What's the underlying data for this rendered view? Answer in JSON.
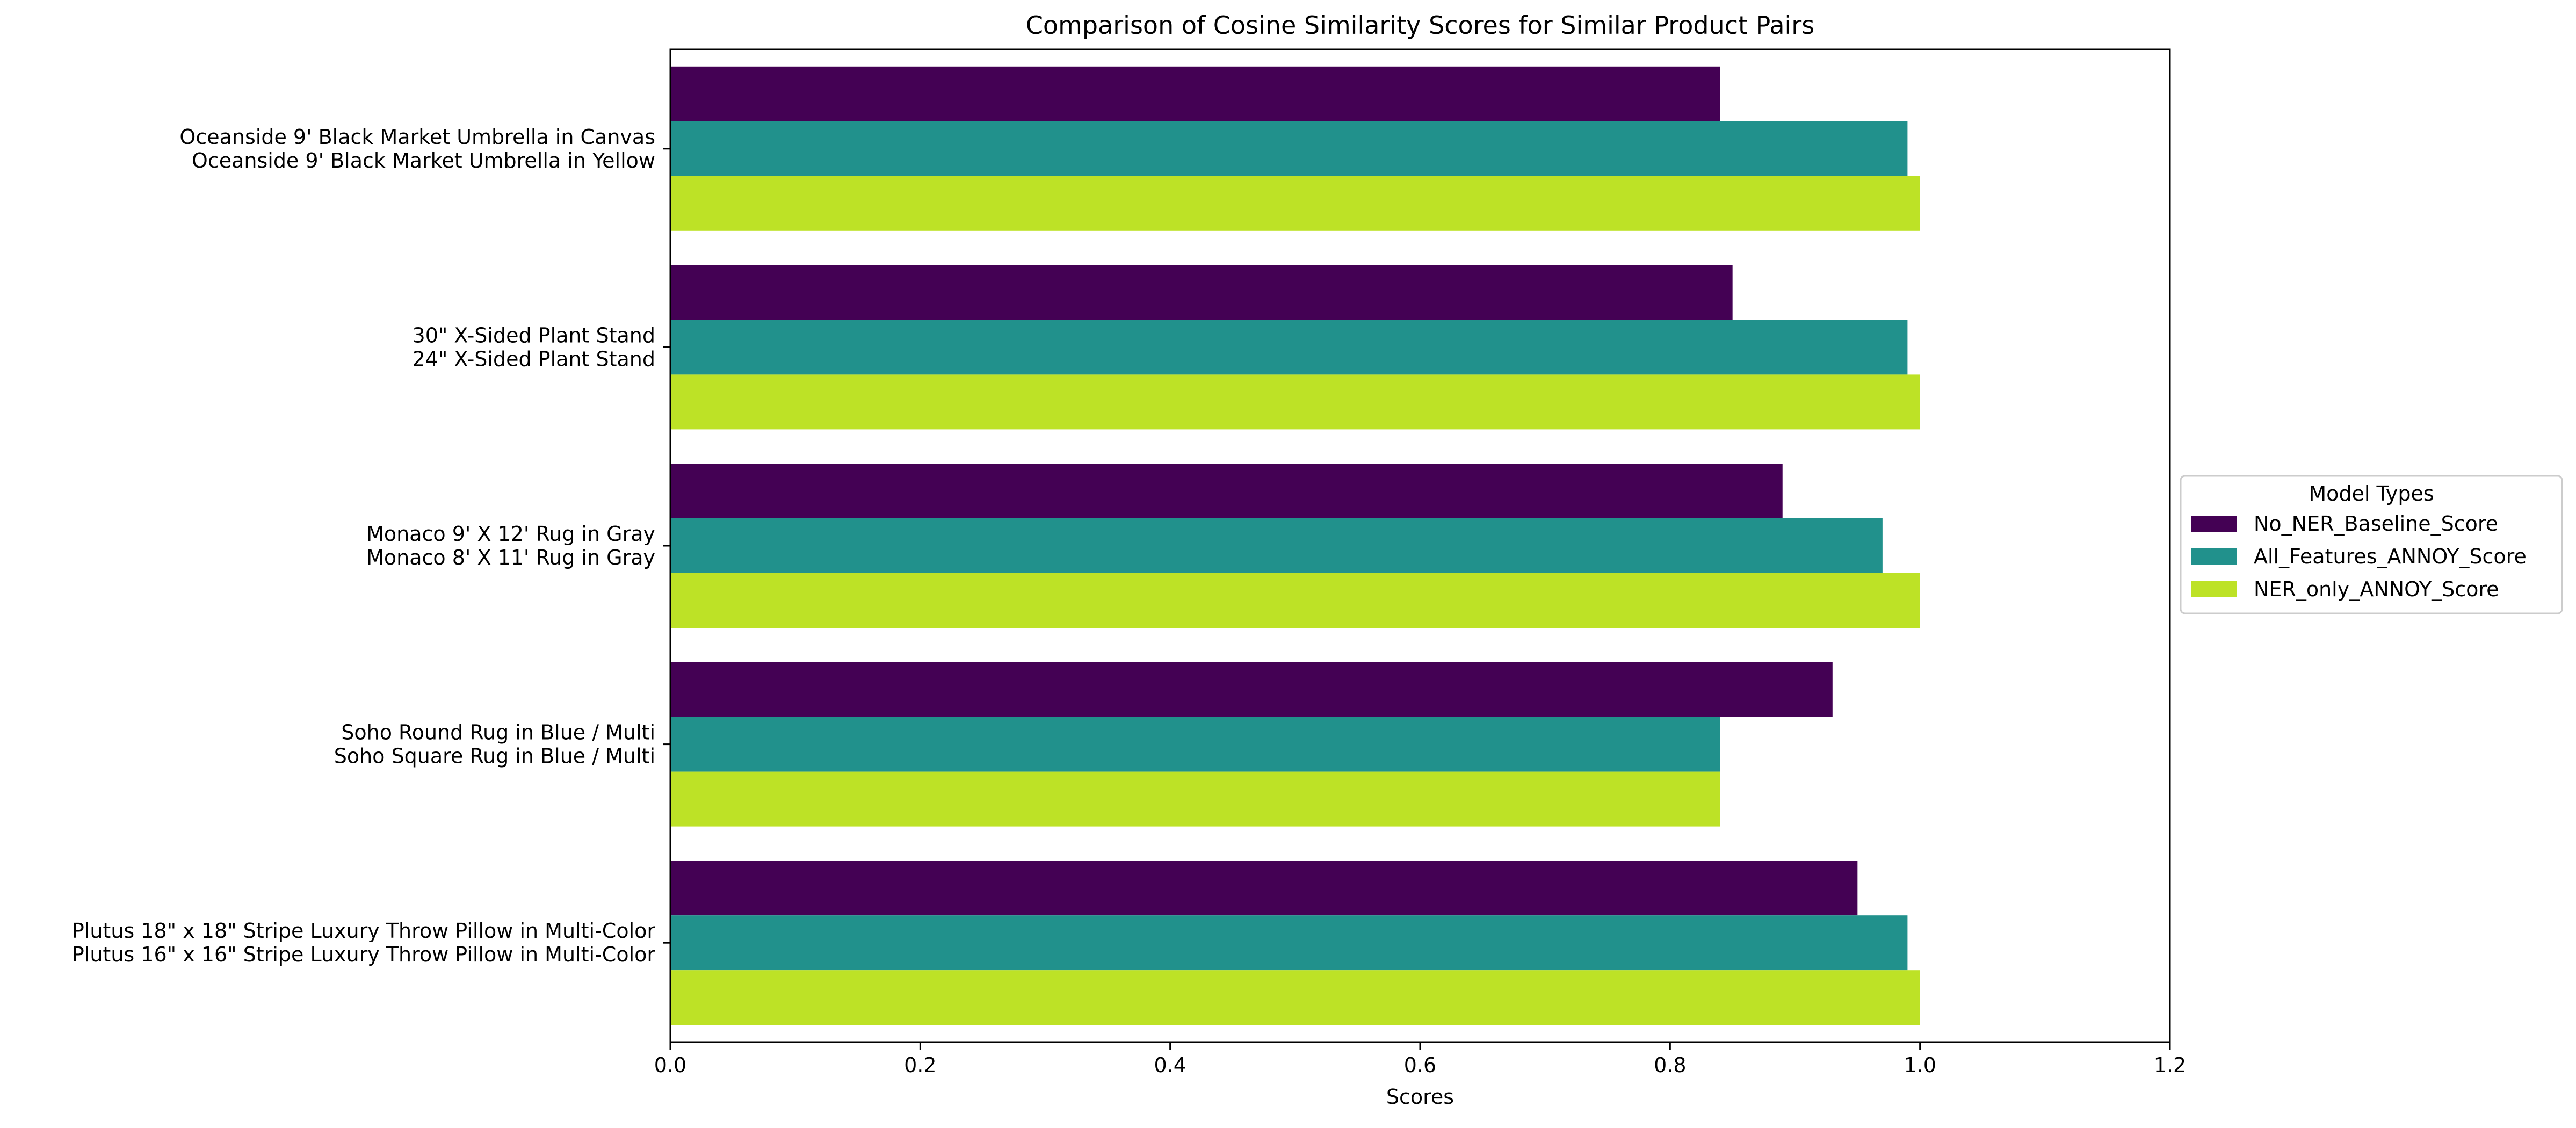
{
  "chart_data": {
    "type": "bar",
    "orientation": "horizontal",
    "title": "Comparison of Cosine Similarity Scores for Similar Product Pairs",
    "xlabel": "Scores",
    "ylabel": "",
    "xlim": [
      0,
      1.2
    ],
    "xticks": [
      "0.0",
      "0.2",
      "0.4",
      "0.6",
      "0.8",
      "1.0",
      "1.2"
    ],
    "grid": false,
    "legend": {
      "title": "Model Types",
      "placement": "center-right, outside plot"
    },
    "categories": [
      [
        "Oceanside 9' Black Market Umbrella in Canvas",
        "Oceanside 9' Black Market Umbrella in Yellow"
      ],
      [
        "30\" X-Sided Plant Stand",
        "24\" X-Sided Plant Stand"
      ],
      [
        "Monaco 9' X 12' Rug in Gray",
        "Monaco 8' X 11' Rug in Gray"
      ],
      [
        "Soho Round Rug in Blue / Multi",
        "Soho Square Rug in Blue / Multi"
      ],
      [
        "Plutus 18\" x 18\" Stripe Luxury Throw Pillow in Multi-Color",
        "Plutus 16\" x 16\" Stripe Luxury Throw Pillow in Multi-Color"
      ]
    ],
    "series": [
      {
        "name": "No_NER_Baseline_Score",
        "color": "#440154",
        "values": [
          0.84,
          0.85,
          0.89,
          0.93,
          0.95
        ]
      },
      {
        "name": "All_Features_ANNOY_Score",
        "color": "#21918c",
        "values": [
          0.99,
          0.99,
          0.97,
          0.84,
          0.99
        ]
      },
      {
        "name": "NER_only_ANNOY_Score",
        "color": "#bde226",
        "values": [
          1.0,
          1.0,
          1.0,
          0.84,
          1.0
        ]
      }
    ]
  }
}
